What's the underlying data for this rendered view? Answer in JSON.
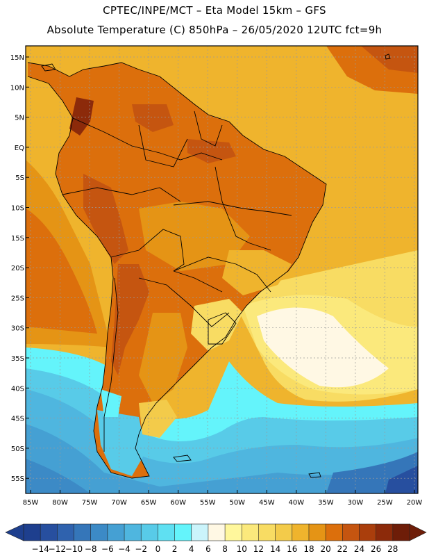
{
  "title": {
    "line1": "CPTEC/INPE/MCT –  Eta Model 15km – GFS",
    "line2": "Absolute Temperature (C) 850hPa – 26/05/2020 12UTC fct=9h"
  },
  "axes": {
    "lat_labels": [
      "15N",
      "10N",
      "5N",
      "EQ",
      "5S",
      "10S",
      "15S",
      "20S",
      "25S",
      "30S",
      "35S",
      "40S",
      "45S",
      "50S",
      "55S"
    ],
    "lon_labels": [
      "85W",
      "80W",
      "75W",
      "70W",
      "65W",
      "60W",
      "55W",
      "50W",
      "45W",
      "40W",
      "35W",
      "30W",
      "25W",
      "20W"
    ]
  },
  "colorbar": {
    "labels": [
      "-14",
      "-12",
      "-10",
      "-8",
      "-6",
      "-4",
      "-2",
      "0",
      "2",
      "4",
      "6",
      "8",
      "10",
      "12",
      "14",
      "16",
      "18",
      "20",
      "22",
      "24",
      "26",
      "28"
    ],
    "colors": [
      "#1e3f8e",
      "#274f9f",
      "#2f62ae",
      "#3576b9",
      "#3c8ac6",
      "#45a0d3",
      "#4fb6df",
      "#58cbe8",
      "#5fe0f2",
      "#64f4fb",
      "#cbf4fb",
      "#fff8e4",
      "#fff79c",
      "#fbe97c",
      "#f8dc63",
      "#f3cb4a",
      "#efb42d",
      "#e59415",
      "#dc6f0c",
      "#c55510",
      "#aa3e0c",
      "#8c2a0a",
      "#6e1d08"
    ]
  },
  "map": {
    "ocean_warm": "#efb42d",
    "ocean_cool": "#4fb6df"
  }
}
